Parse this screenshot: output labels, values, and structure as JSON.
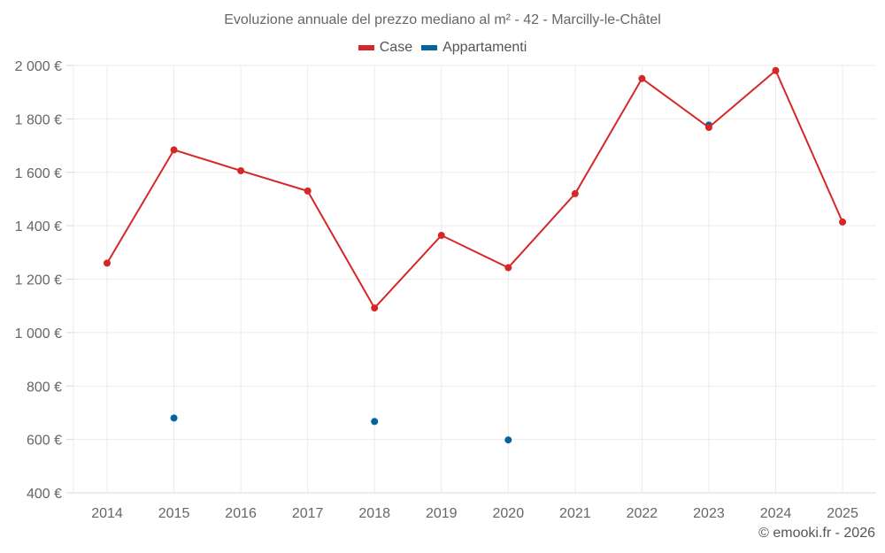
{
  "chart_data": {
    "type": "line",
    "title": "Evoluzione annuale del prezzo mediano al m² - 42 - Marcilly-le-Châtel",
    "xlabel": "",
    "ylabel": "",
    "x": [
      "2014",
      "2015",
      "2016",
      "2017",
      "2018",
      "2019",
      "2020",
      "2021",
      "2022",
      "2023",
      "2024",
      "2025"
    ],
    "ylim": [
      400,
      2000
    ],
    "yticks": [
      400,
      600,
      800,
      1000,
      1200,
      1400,
      1600,
      1800,
      2000
    ],
    "ytick_labels": [
      "400 €",
      "600 €",
      "800 €",
      "1 000 €",
      "1 200 €",
      "1 400 €",
      "1 600 €",
      "1 800 €",
      "2 000 €"
    ],
    "grid": true,
    "legend_position": "top-center",
    "series": [
      {
        "name": "Case",
        "color": "#d62728",
        "style": "line+markers",
        "values": [
          1260,
          1684,
          1606,
          1530,
          1092,
          1364,
          1243,
          1520,
          1951,
          1768,
          1981,
          1414
        ]
      },
      {
        "name": "Appartamenti",
        "color": "#03649e",
        "style": "markers",
        "values": [
          null,
          680,
          null,
          null,
          667,
          null,
          598,
          null,
          null,
          1777,
          null,
          null
        ]
      }
    ]
  },
  "credit": "© emooki.fr - 2026"
}
